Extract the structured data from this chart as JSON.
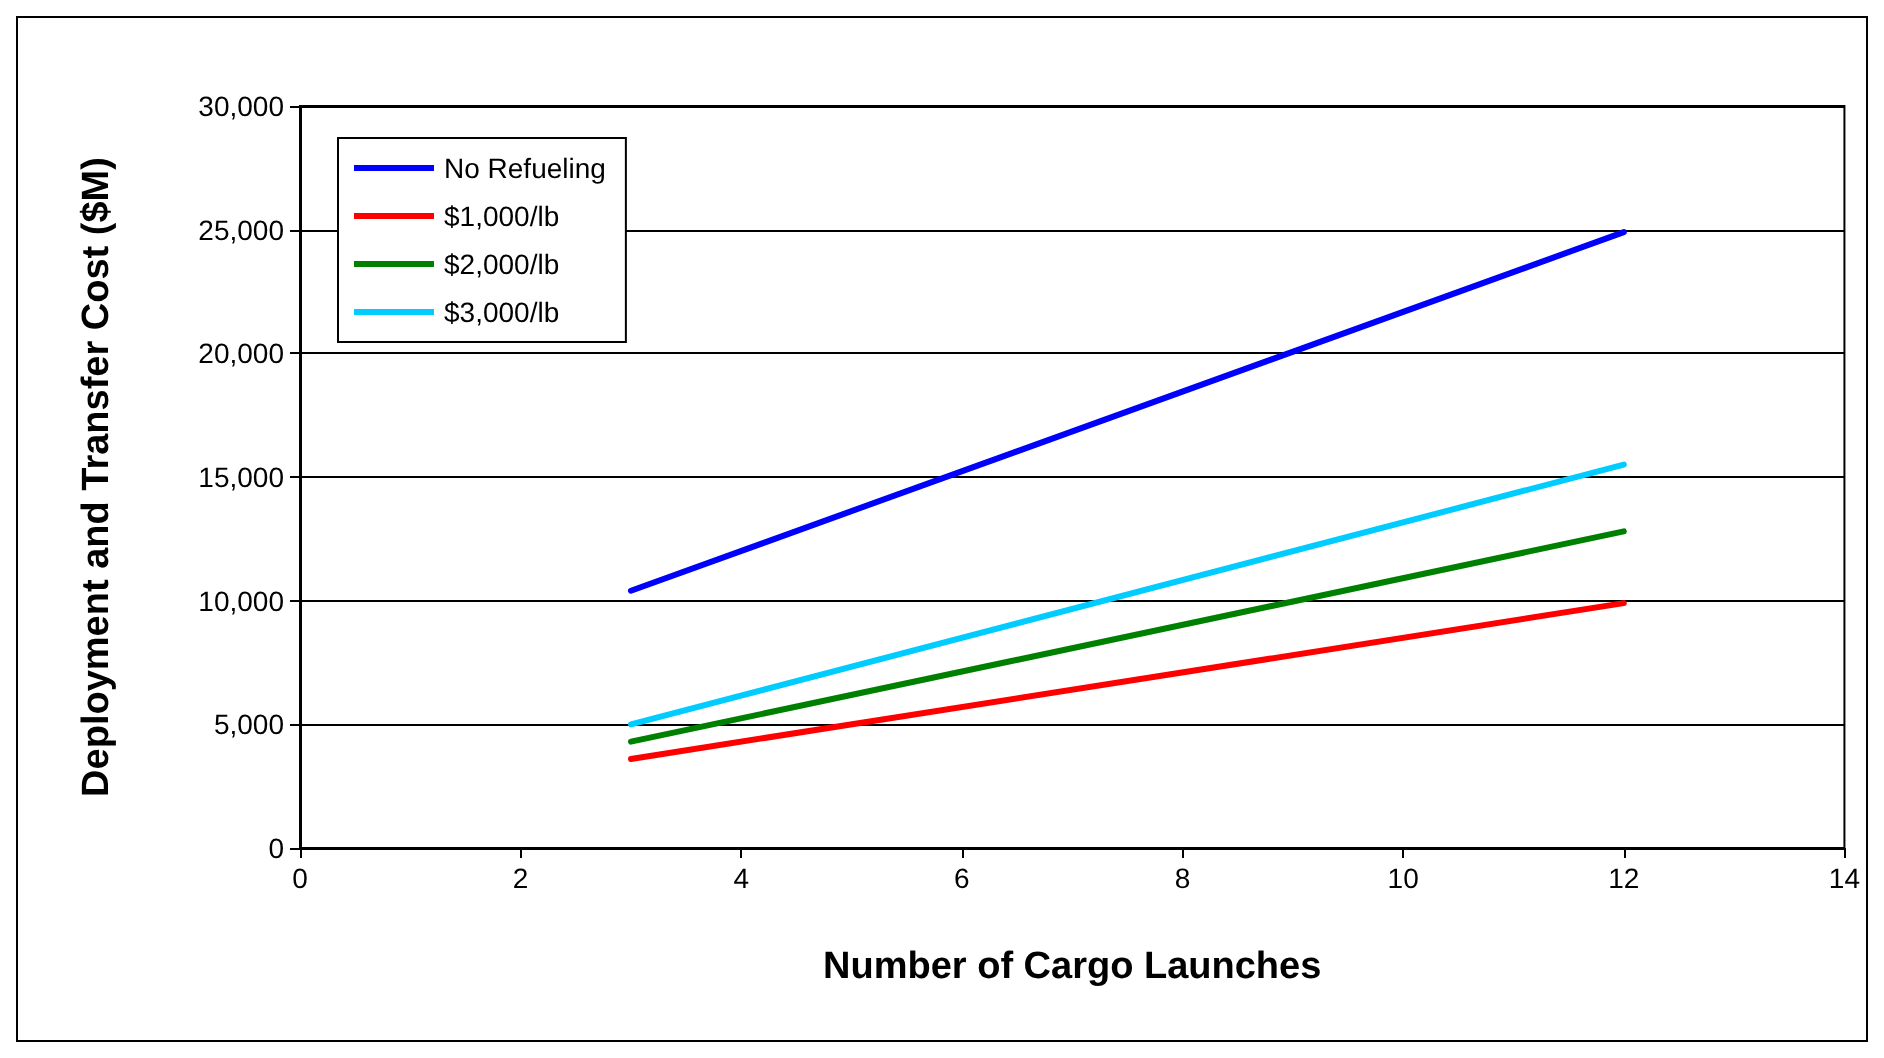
{
  "chart_data": {
    "type": "line",
    "xlabel": "Number of Cargo Launches",
    "ylabel": "Deployment and Transfer Cost ($M)",
    "x": [
      3,
      12
    ],
    "series": [
      {
        "name": "No Refueling",
        "color": "#0000ff",
        "values": [
          10400,
          24900
        ]
      },
      {
        "name": "$1,000/lb",
        "color": "#ff0000",
        "values": [
          3600,
          9900
        ]
      },
      {
        "name": "$2,000/lb",
        "color": "#008000",
        "values": [
          4300,
          12800
        ]
      },
      {
        "name": "$3,000/lb",
        "color": "#00ccff",
        "values": [
          5000,
          15500
        ]
      }
    ],
    "xlim": [
      0,
      14
    ],
    "xticks": [
      0,
      2,
      4,
      6,
      8,
      10,
      12,
      14
    ],
    "ylim": [
      0,
      30000
    ],
    "yticks": [
      0,
      {
        "value": 5000,
        "label": "5,000"
      },
      {
        "value": 10000,
        "label": "10,000"
      },
      {
        "value": 15000,
        "label": "15,000"
      },
      {
        "value": 20000,
        "label": "20,000"
      },
      {
        "value": 25000,
        "label": "25,000"
      },
      {
        "value": 30000,
        "label": "30,000"
      }
    ],
    "grid": "y",
    "legend": "top left",
    "marker": "none",
    "line_style": "solid"
  }
}
